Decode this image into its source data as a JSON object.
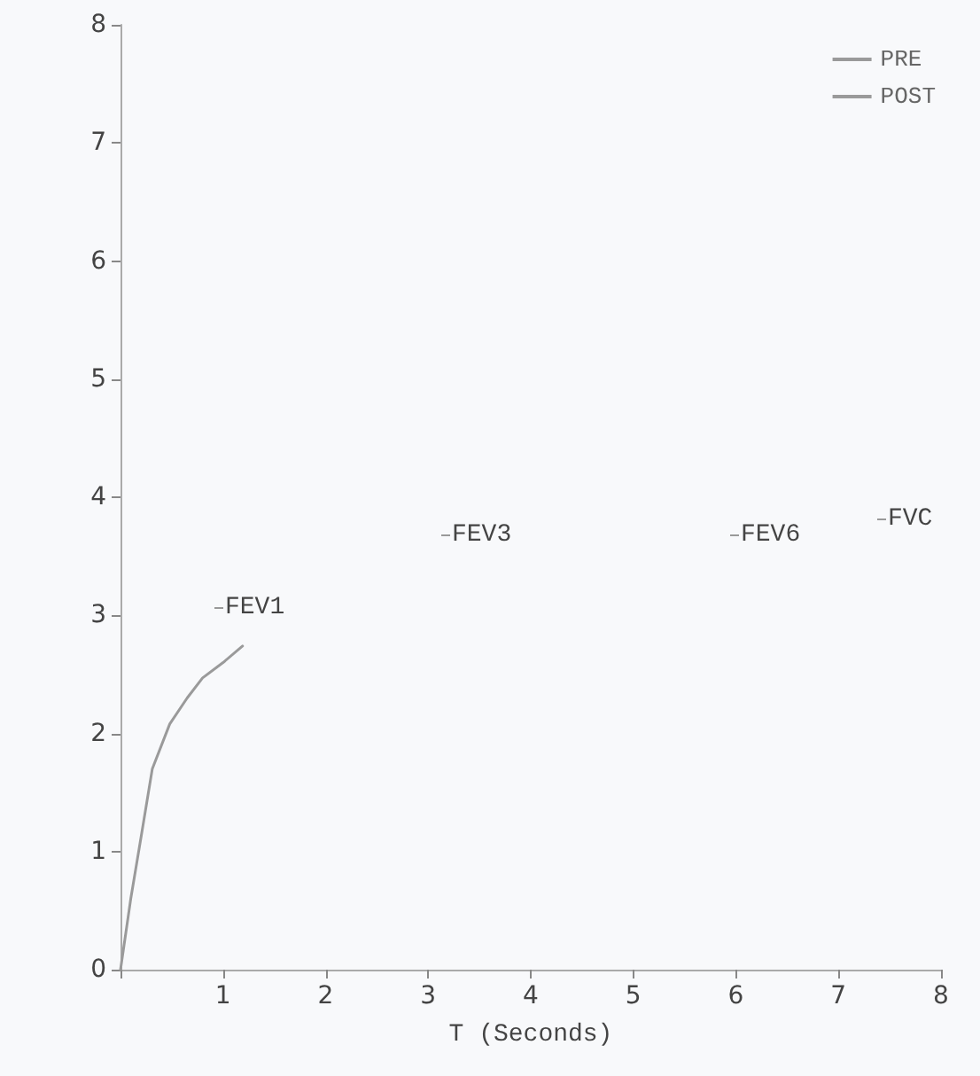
{
  "chart_data": {
    "type": "line",
    "xlabel": "T (Seconds)",
    "x": [
      0,
      0.1,
      0.2,
      0.31,
      0.48,
      0.65,
      0.8,
      1.0,
      1.19
    ],
    "series": [
      {
        "name": "PRE",
        "color": "#9a9a9a",
        "values": [
          0,
          0.6,
          1.12,
          1.7,
          2.08,
          2.3,
          2.47,
          2.6,
          2.74
        ]
      },
      {
        "name": "POST",
        "color": "#9a9a9a",
        "values": [
          null,
          null,
          null,
          null,
          null,
          null,
          null,
          null,
          null
        ]
      }
    ],
    "xlim": [
      0,
      8
    ],
    "xticks": [
      {
        "value": 0,
        "label": null
      },
      1,
      2,
      3,
      4,
      5,
      6,
      7,
      8
    ],
    "ylim": [
      0,
      8
    ],
    "yticks": [
      0,
      1,
      2,
      3,
      4,
      5,
      6,
      7,
      8
    ],
    "annotations": [
      "FEV1",
      "FEV3",
      "FEV6",
      "FVC"
    ],
    "grid": false,
    "legend": "top right",
    "marker": "none",
    "line_style": "solid"
  }
}
